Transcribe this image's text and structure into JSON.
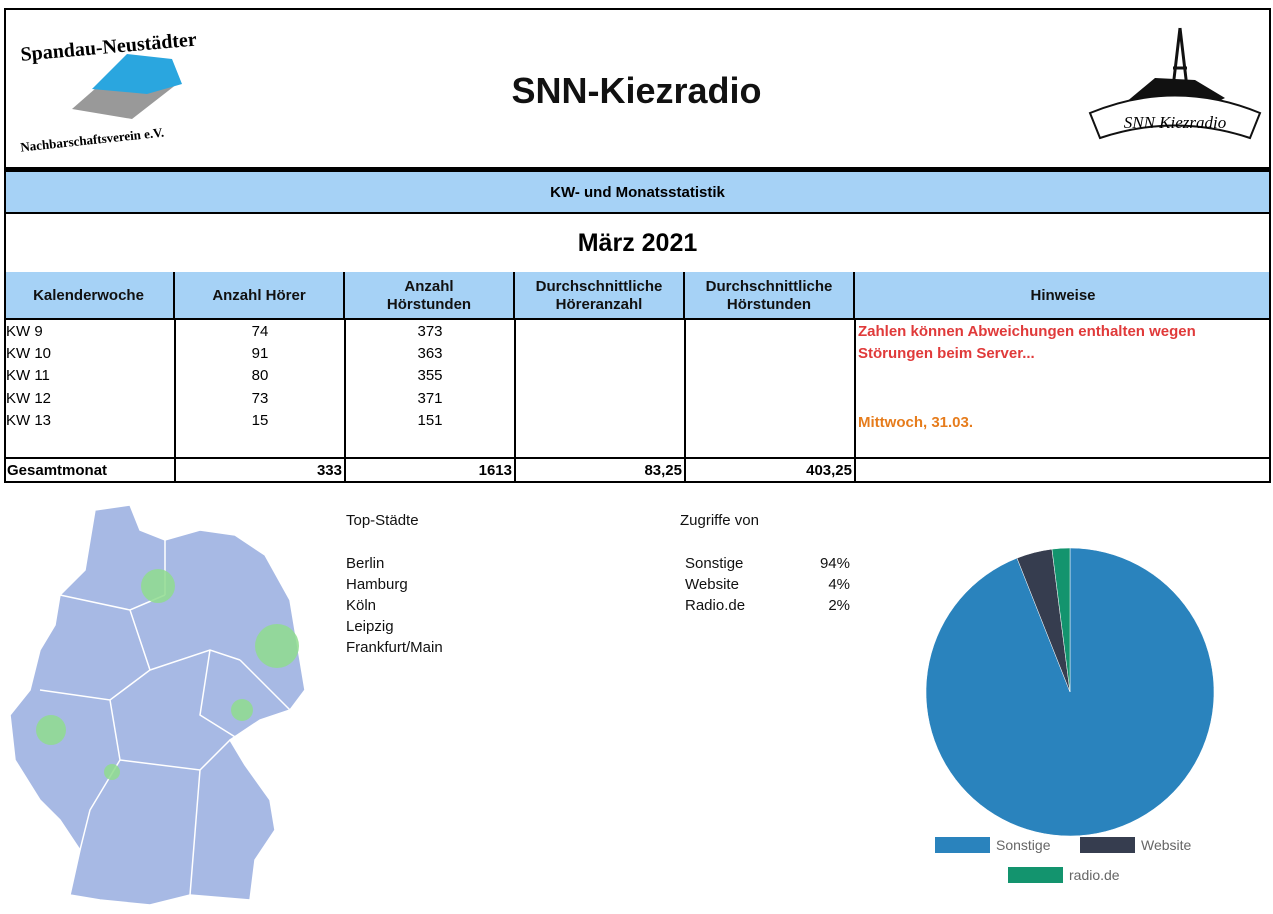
{
  "header": {
    "logo_left_top": "Spandau-Neustädter",
    "logo_left_bottom": "Nachbarschaftsverein e.V.",
    "title": "SNN-Kiezradio",
    "logo_right": "SNN Kiezradio"
  },
  "banner": "KW- und Monatsstatistik",
  "month": "März 2021",
  "table": {
    "columns": [
      "Kalenderwoche",
      "Anzahl Hörer",
      "Anzahl Hörstunden",
      "Durchschnittliche Höreranzahl",
      "Durchschnittliche Hörstunden",
      "Hinweise"
    ],
    "rows": [
      [
        "KW 9",
        74,
        373
      ],
      [
        "KW 10",
        91,
        363
      ],
      [
        "KW 11",
        80,
        355
      ],
      [
        "KW 12",
        73,
        371
      ],
      [
        "KW 13",
        15,
        151
      ]
    ],
    "total": [
      "Gesamtmonat",
      333,
      1613,
      "83,25",
      "403,25"
    ],
    "notes": [
      "Zahlen können Abweichungen enthalten wegen",
      "Störungen beim Server...",
      "Mittwoch, 31.03."
    ]
  },
  "top_cities": {
    "title": "Top-Städte",
    "cities": [
      "Berlin",
      "Hamburg",
      "Köln",
      "Leipzig",
      "Frankfurt/Main"
    ]
  },
  "access": {
    "title": "Zugriffe von",
    "names": [
      "Sonstige",
      "Website",
      "Radio.de"
    ]
  },
  "chart_data": {
    "type": "pie",
    "categories": [
      "Sonstige",
      "Website",
      "radio.de"
    ],
    "values": [
      94,
      4,
      2
    ],
    "value_labels": [
      "94%",
      "4%",
      "2%"
    ],
    "colors": [
      "#2a83bd",
      "#363d4f",
      "#13946e"
    ],
    "legend": "bottom"
  }
}
